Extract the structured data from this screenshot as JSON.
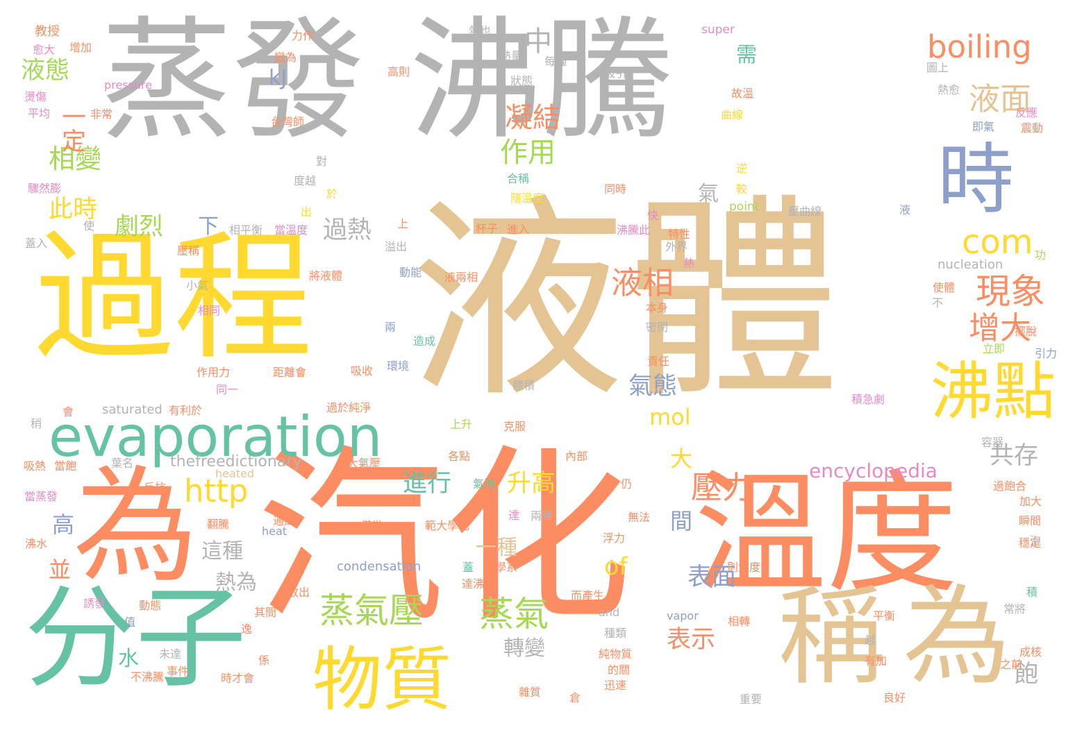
{
  "colors": {
    "gray": "#b3b3b3",
    "tan": "#e5c494",
    "orange": "#fc8d62",
    "yellow": "#ffd92f",
    "teal": "#66c2a5",
    "blue": "#8da0cb",
    "pink": "#e78ac3",
    "green": "#a6d854"
  },
  "words": [
    {
      "text": "蒸發",
      "color": "gray"
    },
    {
      "text": "沸騰",
      "color": "gray"
    },
    {
      "text": "時",
      "color": "blue"
    },
    {
      "text": "液體",
      "color": "tan"
    },
    {
      "text": "過程",
      "color": "yellow"
    },
    {
      "text": "汽化",
      "color": "orange"
    },
    {
      "text": "溫度",
      "color": "orange"
    },
    {
      "text": "為",
      "color": "orange"
    },
    {
      "text": "分子",
      "color": "teal"
    },
    {
      "text": "稱",
      "color": "tan"
    },
    {
      "text": "為",
      "color": "tan"
    },
    {
      "text": "evaporation",
      "color": "teal"
    },
    {
      "text": "物質",
      "color": "yellow"
    },
    {
      "text": "沸點",
      "color": "yellow"
    },
    {
      "text": "boiling",
      "color": "orange"
    },
    {
      "text": "蒸氣壓",
      "color": "green"
    },
    {
      "text": "蒸氣",
      "color": "green"
    },
    {
      "text": "現象",
      "color": "orange"
    },
    {
      "text": "增大",
      "color": "orange"
    },
    {
      "text": "液面",
      "color": "tan"
    },
    {
      "text": "壓力",
      "color": "orange"
    },
    {
      "text": "http",
      "color": "yellow"
    },
    {
      "text": "com",
      "color": "yellow"
    },
    {
      "text": "液相",
      "color": "orange"
    },
    {
      "text": "凝結",
      "color": "orange"
    },
    {
      "text": "作用",
      "color": "green"
    },
    {
      "text": "相變",
      "color": "green"
    },
    {
      "text": "液態",
      "color": "green"
    },
    {
      "text": "一定",
      "color": "orange"
    },
    {
      "text": "此時",
      "color": "yellow"
    },
    {
      "text": "劇烈",
      "color": "green"
    },
    {
      "text": "過熱",
      "color": "gray"
    },
    {
      "text": "氣態",
      "color": "blue"
    },
    {
      "text": "mol",
      "color": "yellow"
    },
    {
      "text": "進行",
      "color": "teal"
    },
    {
      "text": "升高",
      "color": "yellow"
    },
    {
      "text": "共存",
      "color": "gray"
    },
    {
      "text": "encyclopedia",
      "color": "pink"
    },
    {
      "text": "表面",
      "color": "blue"
    },
    {
      "text": "表示",
      "color": "orange"
    },
    {
      "text": "轉變",
      "color": "gray"
    },
    {
      "text": "一種",
      "color": "tan"
    },
    {
      "text": "這種",
      "color": "gray"
    },
    {
      "text": "熱為",
      "color": "gray"
    },
    {
      "text": "of",
      "color": "yellow"
    },
    {
      "text": "間",
      "color": "blue"
    },
    {
      "text": "大",
      "color": "yellow"
    },
    {
      "text": "下",
      "color": "blue"
    },
    {
      "text": "中",
      "color": "gray"
    },
    {
      "text": "需",
      "color": "teal"
    },
    {
      "text": "氣",
      "color": "gray"
    },
    {
      "text": "kJ",
      "color": "blue"
    },
    {
      "text": "高",
      "color": "blue"
    },
    {
      "text": "並",
      "color": "orange"
    },
    {
      "text": "水",
      "color": "teal"
    },
    {
      "text": "飽",
      "color": "gray"
    },
    {
      "text": "thefreedictionary",
      "color": "gray"
    },
    {
      "text": "condensation",
      "color": "blue"
    },
    {
      "text": "nucleation",
      "color": "gray"
    },
    {
      "text": "saturated",
      "color": "gray"
    },
    {
      "text": "pressure",
      "color": "pink"
    },
    {
      "text": "super",
      "color": "pink"
    },
    {
      "text": "point",
      "color": "green"
    },
    {
      "text": "heated",
      "color": "tan"
    },
    {
      "text": "heat",
      "color": "blue"
    },
    {
      "text": "vapor",
      "color": "blue"
    },
    {
      "text": "and",
      "color": "gray"
    },
    {
      "text": "教授",
      "color": "orange"
    },
    {
      "text": "愈大",
      "color": "pink"
    },
    {
      "text": "增加",
      "color": "orange"
    },
    {
      "text": "力作",
      "color": "orange"
    },
    {
      "text": "熱也",
      "color": "gray"
    },
    {
      "text": "變為",
      "color": "orange"
    },
    {
      "text": "熱量",
      "color": "gray"
    },
    {
      "text": "每種",
      "color": "gray"
    },
    {
      "text": "高則",
      "color": "orange"
    },
    {
      "text": "吸引",
      "color": "gray"
    },
    {
      "text": "狀態",
      "color": "gray"
    },
    {
      "text": "燙傷",
      "color": "pink"
    },
    {
      "text": "平均",
      "color": "pink"
    },
    {
      "text": "非常",
      "color": "orange"
    },
    {
      "text": "台灣師",
      "color": "orange"
    },
    {
      "text": "故溫",
      "color": "orange"
    },
    {
      "text": "曲線",
      "color": "yellow"
    },
    {
      "text": "圖上",
      "color": "gray"
    },
    {
      "text": "熱愈",
      "color": "gray"
    },
    {
      "text": "反應",
      "color": "pink"
    },
    {
      "text": "即氣",
      "color": "blue"
    },
    {
      "text": "震動",
      "color": "orange"
    },
    {
      "text": "驟然膨",
      "color": "pink"
    },
    {
      "text": "對",
      "color": "gray"
    },
    {
      "text": "度越",
      "color": "gray"
    },
    {
      "text": "合稱",
      "color": "teal"
    },
    {
      "text": "逆",
      "color": "yellow"
    },
    {
      "text": "較",
      "color": "yellow"
    },
    {
      "text": "隨溫度",
      "color": "yellow"
    },
    {
      "text": "於",
      "color": "yellow"
    },
    {
      "text": "出",
      "color": "yellow"
    },
    {
      "text": "使",
      "color": "gray"
    },
    {
      "text": "上",
      "color": "orange"
    },
    {
      "text": "同時",
      "color": "orange"
    },
    {
      "text": "快",
      "color": "pink"
    },
    {
      "text": "壓曲線",
      "color": "gray"
    },
    {
      "text": "液",
      "color": "blue"
    },
    {
      "text": "杯子",
      "color": "orange"
    },
    {
      "text": "進入",
      "color": "orange"
    },
    {
      "text": "特性",
      "color": "orange"
    },
    {
      "text": "相平衡",
      "color": "gray"
    },
    {
      "text": "當溫度",
      "color": "pink"
    },
    {
      "text": "沸騰此",
      "color": "pink"
    },
    {
      "text": "溢出",
      "color": "gray"
    },
    {
      "text": "外界",
      "color": "gray"
    },
    {
      "text": "功",
      "color": "green"
    },
    {
      "text": "蓋入",
      "color": "gray"
    },
    {
      "text": "壓稱",
      "color": "orange"
    },
    {
      "text": "熱",
      "color": "pink"
    },
    {
      "text": "動能",
      "color": "blue"
    },
    {
      "text": "液兩相",
      "color": "orange"
    },
    {
      "text": "使體",
      "color": "orange"
    },
    {
      "text": "將液體",
      "color": "orange"
    },
    {
      "text": "小氣",
      "color": "gray"
    },
    {
      "text": "本身",
      "color": "orange"
    },
    {
      "text": "不",
      "color": "gray"
    },
    {
      "text": "相同",
      "color": "pink"
    },
    {
      "text": "密閉",
      "color": "gray"
    },
    {
      "text": "兩",
      "color": "blue"
    },
    {
      "text": "造成",
      "color": "teal"
    },
    {
      "text": "立即",
      "color": "green"
    },
    {
      "text": "擺脫",
      "color": "orange"
    },
    {
      "text": "引力",
      "color": "blue"
    },
    {
      "text": "責任",
      "color": "orange"
    },
    {
      "text": "距離會",
      "color": "orange"
    },
    {
      "text": "作用力",
      "color": "orange"
    },
    {
      "text": "吸收",
      "color": "orange"
    },
    {
      "text": "環境",
      "color": "blue"
    },
    {
      "text": "同一",
      "color": "pink"
    },
    {
      "text": "體積",
      "color": "gray"
    },
    {
      "text": "積急劇",
      "color": "pink"
    },
    {
      "text": "過於純淨",
      "color": "orange"
    },
    {
      "text": "有利於",
      "color": "orange"
    },
    {
      "text": "會",
      "color": "orange"
    },
    {
      "text": "稍",
      "color": "gray"
    },
    {
      "text": "上升",
      "color": "green"
    },
    {
      "text": "克服",
      "color": "orange"
    },
    {
      "text": "容器",
      "color": "gray"
    },
    {
      "text": "吸熱",
      "color": "orange"
    },
    {
      "text": "當飽",
      "color": "orange"
    },
    {
      "text": "葉名",
      "color": "gray"
    },
    {
      "text": "大氣壓",
      "color": "orange"
    },
    {
      "text": "各點",
      "color": "orange"
    },
    {
      "text": "內部",
      "color": "orange"
    },
    {
      "text": "反抗",
      "color": "orange"
    },
    {
      "text": "氣泡",
      "color": "teal"
    },
    {
      "text": "仍",
      "color": "orange"
    },
    {
      "text": "過飽合",
      "color": "orange"
    },
    {
      "text": "當蒸發",
      "color": "pink"
    },
    {
      "text": "加大",
      "color": "orange"
    },
    {
      "text": "通風",
      "color": "orange"
    },
    {
      "text": "範大學化",
      "color": "orange"
    },
    {
      "text": "達",
      "color": "pink"
    },
    {
      "text": "兩種",
      "color": "gray"
    },
    {
      "text": "無法",
      "color": "orange"
    },
    {
      "text": "瞬間",
      "color": "orange"
    },
    {
      "text": "翻騰",
      "color": "orange"
    },
    {
      "text": "僅當",
      "color": "orange"
    },
    {
      "text": "浮力",
      "color": "orange"
    },
    {
      "text": "穩定",
      "color": "orange"
    },
    {
      "text": "泡",
      "color": "gray"
    },
    {
      "text": "沸水",
      "color": "orange"
    },
    {
      "text": "學系",
      "color": "orange"
    },
    {
      "text": "則溫度",
      "color": "orange"
    },
    {
      "text": "達沸點",
      "color": "orange"
    },
    {
      "text": "放出",
      "color": "orange"
    },
    {
      "text": "誘發",
      "color": "pink"
    },
    {
      "text": "蓋",
      "color": "teal"
    },
    {
      "text": "積",
      "color": "teal"
    },
    {
      "text": "動態",
      "color": "orange"
    },
    {
      "text": "而產生",
      "color": "orange"
    },
    {
      "text": "其間",
      "color": "orange"
    },
    {
      "text": "值",
      "color": "blue"
    },
    {
      "text": "逸",
      "color": "orange"
    },
    {
      "text": "相轉",
      "color": "orange"
    },
    {
      "text": "平衡",
      "color": "orange"
    },
    {
      "text": "常將",
      "color": "gray"
    },
    {
      "text": "種類",
      "color": "gray"
    },
    {
      "text": "越",
      "color": "gray"
    },
    {
      "text": "成核",
      "color": "orange"
    },
    {
      "text": "未達",
      "color": "gray"
    },
    {
      "text": "係",
      "color": "orange"
    },
    {
      "text": "純物質",
      "color": "orange"
    },
    {
      "text": "之前",
      "color": "orange"
    },
    {
      "text": "事件",
      "color": "orange"
    },
    {
      "text": "的關",
      "color": "orange"
    },
    {
      "text": "有加",
      "color": "orange"
    },
    {
      "text": "不沸騰",
      "color": "orange"
    },
    {
      "text": "時才會",
      "color": "orange"
    },
    {
      "text": "迅速",
      "color": "orange"
    },
    {
      "text": "雜質",
      "color": "orange"
    },
    {
      "text": "倉",
      "color": "orange"
    },
    {
      "text": "良好",
      "color": "orange"
    },
    {
      "text": "重要",
      "color": "gray"
    }
  ]
}
